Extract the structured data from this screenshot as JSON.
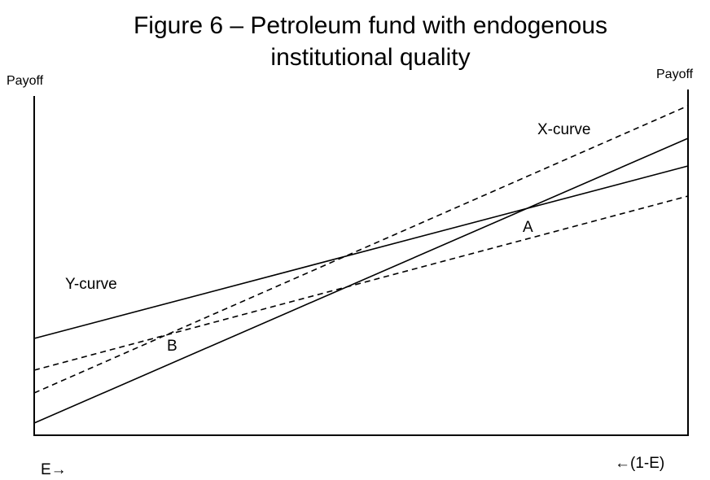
{
  "title": [
    "Figure 6 – Petroleum fund with endogenous",
    "institutional quality"
  ],
  "axes": {
    "left_label": "Payoff",
    "right_label": "Payoff",
    "bottom_left": "E→",
    "bottom_right": "←(1-E)"
  },
  "curves": {
    "x_curve": "X-curve",
    "y_curve": "Y-curve"
  },
  "points": {
    "a": "A",
    "b": "B"
  }
}
